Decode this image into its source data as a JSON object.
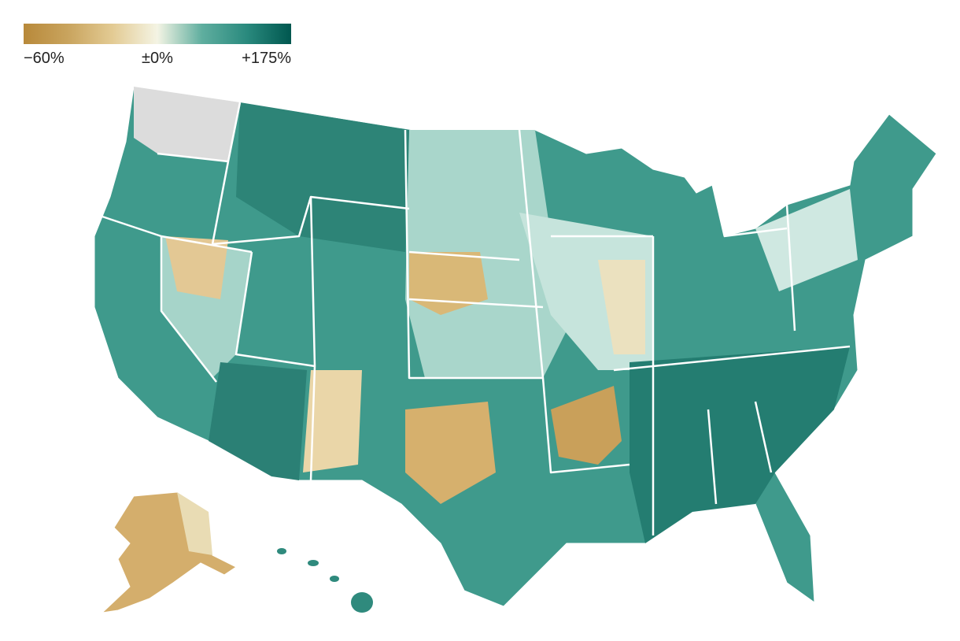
{
  "legend": {
    "range": [
      -60,
      175
    ],
    "ticks": [
      {
        "value": -60,
        "label": "−60%"
      },
      {
        "value": 0,
        "label": "±0%"
      },
      {
        "value": 175,
        "label": "+175%"
      }
    ],
    "negative_colors": [
      "#b8893a",
      "#c9a45e",
      "#e3cb94"
    ],
    "zero_color": "#f4f4e4",
    "positive_colors": [
      "#5fae9f",
      "#2a8a7e",
      "#00574f"
    ]
  }
}
